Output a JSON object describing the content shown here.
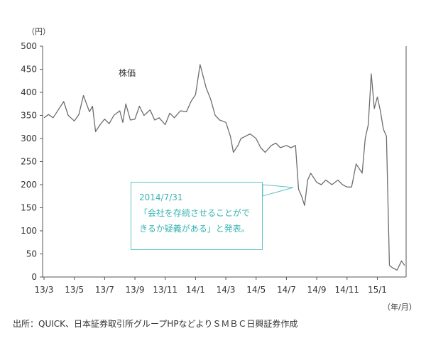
{
  "chart_data": {
    "type": "line",
    "series_label": "株価",
    "y_unit": "（円）",
    "x_unit": "（年/月）",
    "ylim": [
      0,
      500
    ],
    "y_ticks": [
      0,
      50,
      100,
      150,
      200,
      250,
      300,
      350,
      400,
      450,
      500
    ],
    "x_ticks": [
      "13/3",
      "13/5",
      "13/7",
      "13/9",
      "13/11",
      "14/1",
      "14/3",
      "14/5",
      "14/7",
      "14/9",
      "14/11",
      "15/1"
    ],
    "grid": false,
    "series": [
      {
        "values": [
          [
            "13/3",
            345
          ],
          [
            "13/3.3",
            352
          ],
          [
            "13/3.6",
            345
          ],
          [
            "13/4",
            365
          ],
          [
            "13/4.3",
            380
          ],
          [
            "13/4.6",
            350
          ],
          [
            "13/5",
            338
          ],
          [
            "13/5.3",
            352
          ],
          [
            "13/5.6",
            393
          ],
          [
            "13/6",
            358
          ],
          [
            "13/6.2",
            370
          ],
          [
            "13/6.4",
            315
          ],
          [
            "13/6.7",
            330
          ],
          [
            "13/7",
            342
          ],
          [
            "13/7.3",
            332
          ],
          [
            "13/7.6",
            350
          ],
          [
            "13/8",
            360
          ],
          [
            "13/8.2",
            335
          ],
          [
            "13/8.4",
            375
          ],
          [
            "13/8.7",
            340
          ],
          [
            "13/9",
            342
          ],
          [
            "13/9.3",
            370
          ],
          [
            "13/9.6",
            350
          ],
          [
            "13/10",
            362
          ],
          [
            "13/10.3",
            340
          ],
          [
            "13/10.6",
            345
          ],
          [
            "13/11",
            330
          ],
          [
            "13/11.3",
            355
          ],
          [
            "13/11.6",
            345
          ],
          [
            "13/12",
            360
          ],
          [
            "13/12.4",
            358
          ],
          [
            "13/12.7",
            380
          ],
          [
            "14/1",
            395
          ],
          [
            "14/1.3",
            460
          ],
          [
            "14/1.5",
            435
          ],
          [
            "14/1.7",
            410
          ],
          [
            "14/2",
            385
          ],
          [
            "14/2.3",
            350
          ],
          [
            "14/2.6",
            340
          ],
          [
            "14/3",
            335
          ],
          [
            "14/3.3",
            305
          ],
          [
            "14/3.5",
            270
          ],
          [
            "14/3.8",
            285
          ],
          [
            "14/4",
            300
          ],
          [
            "14/4.3",
            305
          ],
          [
            "14/4.6",
            310
          ],
          [
            "14/5",
            300
          ],
          [
            "14/5.3",
            280
          ],
          [
            "14/5.6",
            270
          ],
          [
            "14/6",
            285
          ],
          [
            "14/6.3",
            290
          ],
          [
            "14/6.6",
            280
          ],
          [
            "14/7",
            285
          ],
          [
            "14/7.3",
            280
          ],
          [
            "14/7.6",
            285
          ],
          [
            "14/7.8",
            190
          ],
          [
            "14/8",
            175
          ],
          [
            "14/8.2",
            155
          ],
          [
            "14/8.4",
            210
          ],
          [
            "14/8.6",
            225
          ],
          [
            "14/9",
            205
          ],
          [
            "14/9.3",
            200
          ],
          [
            "14/9.6",
            210
          ],
          [
            "14/10",
            200
          ],
          [
            "14/10.4",
            210
          ],
          [
            "14/10.7",
            200
          ],
          [
            "14/11",
            195
          ],
          [
            "14/11.3",
            195
          ],
          [
            "14/11.6",
            245
          ],
          [
            "14/12",
            225
          ],
          [
            "14/12.2",
            300
          ],
          [
            "14/12.4",
            330
          ],
          [
            "14/12.6",
            440
          ],
          [
            "14/12.8",
            365
          ],
          [
            "15/1",
            390
          ],
          [
            "15/1.2",
            360
          ],
          [
            "15/1.4",
            320
          ],
          [
            "15/1.6",
            305
          ],
          [
            "15/1.8",
            25
          ],
          [
            "15/2",
            20
          ],
          [
            "15/2.3",
            15
          ],
          [
            "15/2.6",
            35
          ],
          [
            "15/2.8",
            25
          ]
        ]
      }
    ]
  },
  "callout": {
    "line1": "2014/7/31",
    "line2": "「会社を存続させることがで",
    "line3": "きるか疑義がある」と発表。"
  },
  "source": "出所：QUICK、日本証券取引所グループHPなどよりＳＭＢＣ日興証券作成",
  "colors": {
    "line": "#6d6d6d",
    "axis": "#555555",
    "callout_border": "#5ec4c4",
    "callout_text": "#3bb3b3"
  }
}
